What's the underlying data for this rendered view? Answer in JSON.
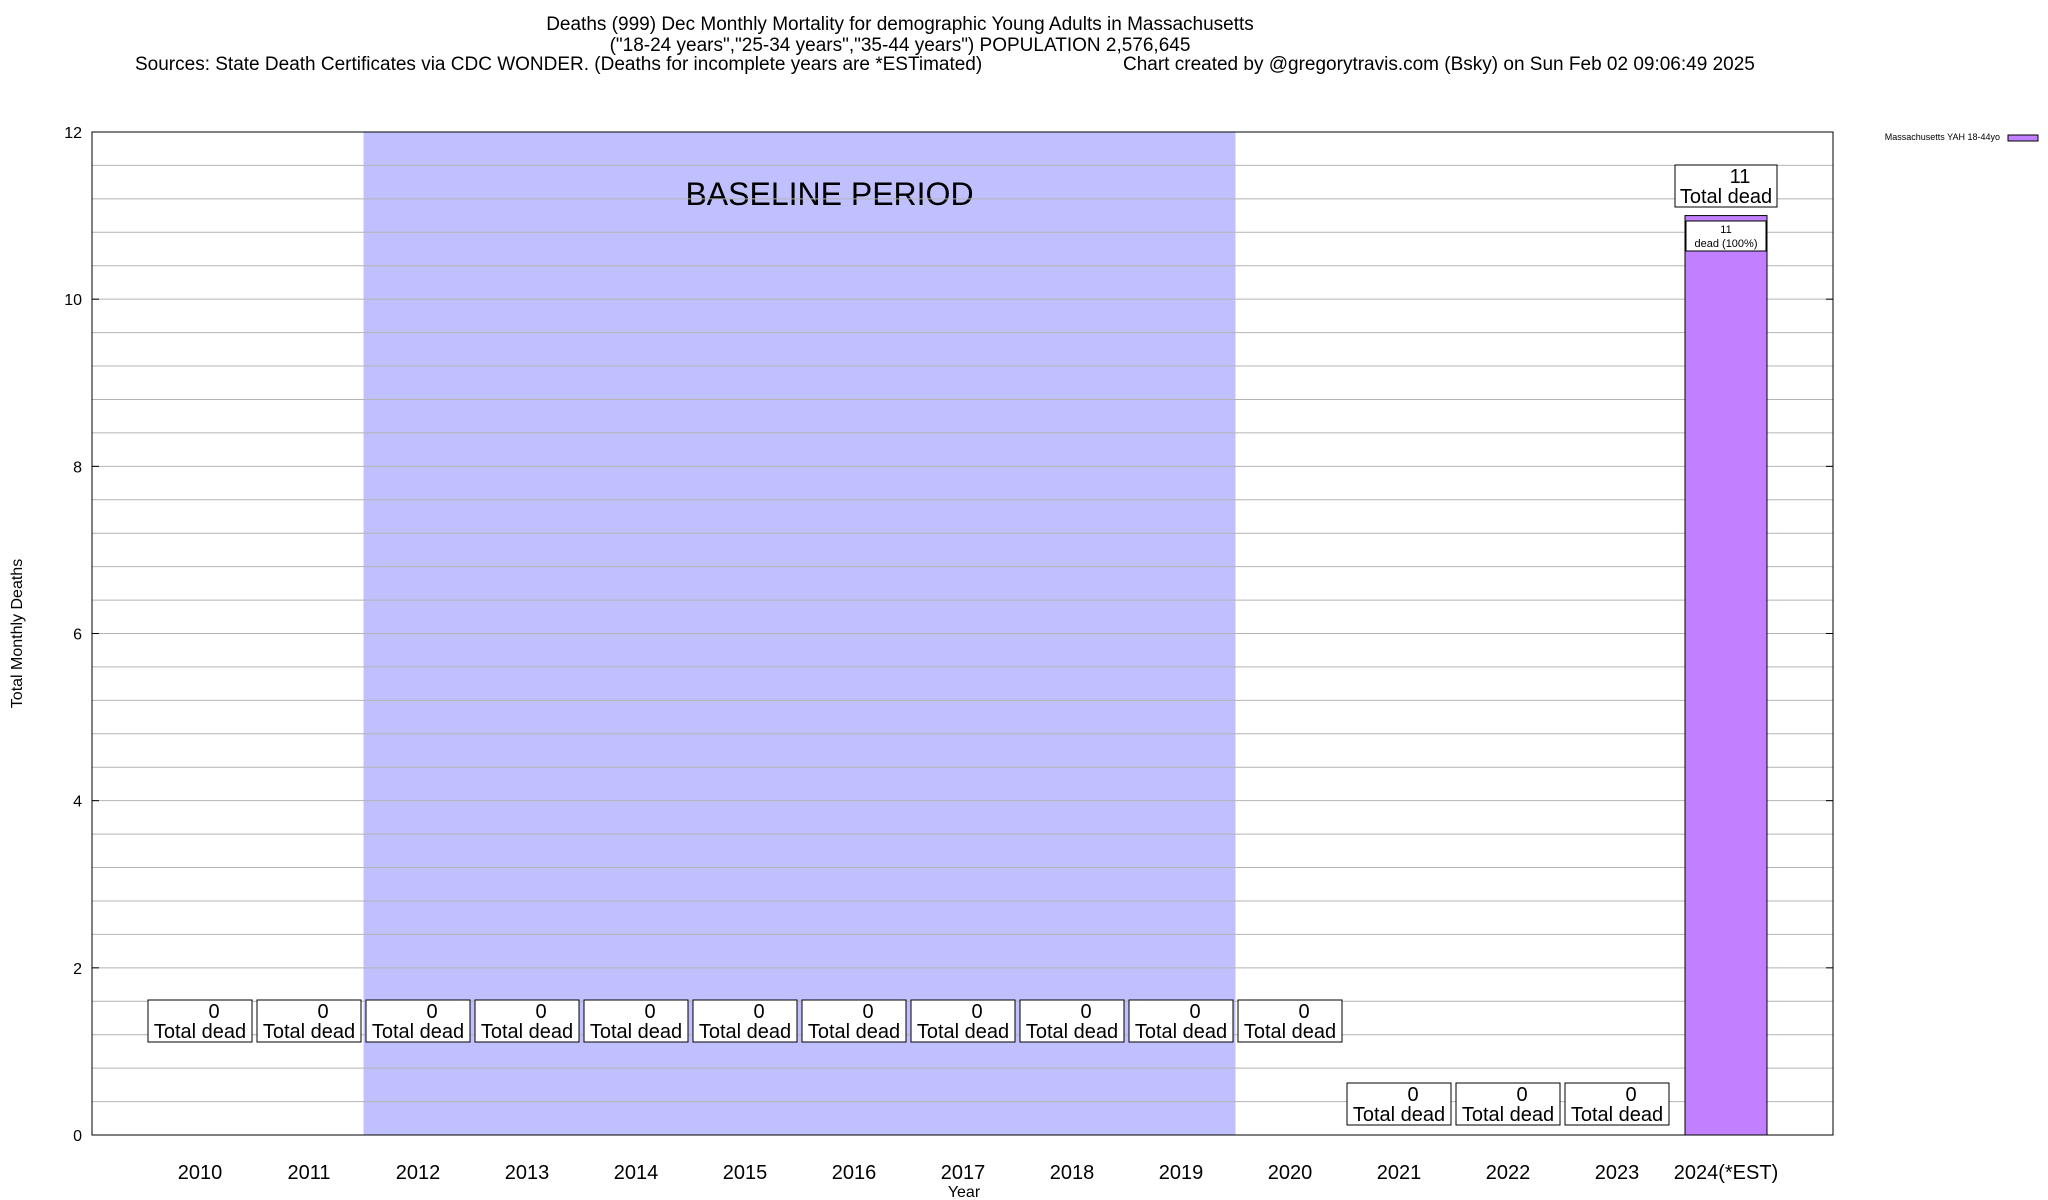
{
  "chart_data": {
    "type": "bar",
    "title": "Deaths (999) Dec Monthly Mortality for demographic Young Adults in Massachusetts",
    "subtitle": "(\"18-24 years\",\"25-34 years\",\"35-44 years\") POPULATION 2,576,645",
    "sources": "Sources: State Death Certificates via CDC WONDER. (Deaths for incomplete years are *ESTimated)",
    "credit": "Chart created by @gregorytravis.com (Bsky) on Sun Feb 02 09:06:49 2025",
    "xlabel": "Year",
    "ylabel": "Total Monthly Deaths",
    "ylim": [
      0,
      12
    ],
    "yticks": [
      0,
      2,
      4,
      6,
      8,
      10,
      12
    ],
    "grid": true,
    "categories": [
      "2010",
      "2011",
      "2012",
      "2013",
      "2014",
      "2015",
      "2016",
      "2017",
      "2018",
      "2019",
      "2020",
      "2021",
      "2022",
      "2023",
      "2024(*EST)"
    ],
    "series": [
      {
        "name": "Massachusetts YAH 18-44yo",
        "color": "#c080ff",
        "values": [
          0,
          0,
          0,
          0,
          0,
          0,
          0,
          0,
          0,
          0,
          0,
          0,
          0,
          0,
          11
        ]
      }
    ],
    "total_labels": [
      "0",
      "0",
      "0",
      "0",
      "0",
      "0",
      "0",
      "0",
      "0",
      "0",
      "0",
      "0",
      "0",
      "0",
      "11"
    ],
    "total_suffix": "Total dead",
    "segment_label": {
      "index": 14,
      "value": "11",
      "text": "dead (100%)"
    },
    "baseline": {
      "label": "BASELINE PERIOD",
      "start": "2012",
      "end": "2019",
      "color": "#c0c0ff"
    },
    "legend_position": "top-right"
  }
}
